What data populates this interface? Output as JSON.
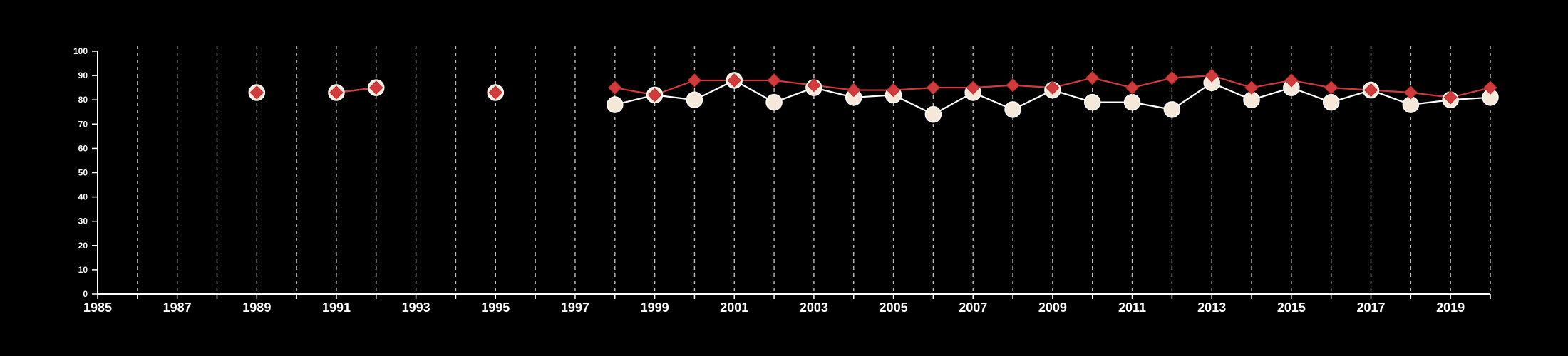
{
  "chart_data": {
    "type": "line",
    "title": "",
    "xlabel": "",
    "ylabel": "",
    "xlim": [
      1985,
      2020
    ],
    "ylim": [
      0,
      100
    ],
    "y_ticks": [
      0,
      10,
      20,
      30,
      40,
      50,
      60,
      70,
      80,
      90,
      100
    ],
    "y_tick_labels": [
      "0",
      "10",
      "20",
      "30",
      "40",
      "50",
      "60",
      "70",
      "80",
      "90",
      "100"
    ],
    "x_ticks": [
      1985,
      1987,
      1989,
      1991,
      1993,
      1995,
      1997,
      1999,
      2001,
      2003,
      2005,
      2007,
      2009,
      2011,
      2013,
      2015,
      2017,
      2019
    ],
    "x_tick_labels": [
      "1985",
      "1987",
      "1989",
      "1991",
      "1993",
      "1995",
      "1997",
      "1999",
      "2001",
      "2003",
      "2005",
      "2007",
      "2009",
      "2011",
      "2013",
      "2015",
      "2017",
      "2019"
    ],
    "vertical_grid": "dashed, every year",
    "background": "#000000",
    "series": [
      {
        "marker": "circle",
        "color": "#ffffff",
        "marker_fill": "#f6e8d8",
        "points": [
          [
            1989,
            83
          ],
          [
            1991,
            83
          ],
          [
            1992,
            85
          ],
          [
            1995,
            83
          ],
          [
            1998,
            78
          ],
          [
            1999,
            82
          ],
          [
            2000,
            80
          ],
          [
            2001,
            88
          ],
          [
            2002,
            79
          ],
          [
            2003,
            85
          ],
          [
            2004,
            81
          ],
          [
            2005,
            82
          ],
          [
            2006,
            74
          ],
          [
            2007,
            83
          ],
          [
            2008,
            76
          ],
          [
            2009,
            84
          ],
          [
            2010,
            79
          ],
          [
            2011,
            79
          ],
          [
            2012,
            76
          ],
          [
            2013,
            87
          ],
          [
            2014,
            80
          ],
          [
            2015,
            85
          ],
          [
            2016,
            79
          ],
          [
            2017,
            84
          ],
          [
            2018,
            78
          ],
          [
            2019,
            80
          ],
          [
            2020,
            81
          ]
        ]
      },
      {
        "marker": "diamond",
        "color": "#d13b3b",
        "points": [
          [
            1989,
            83
          ],
          [
            1991,
            83
          ],
          [
            1992,
            85
          ],
          [
            1995,
            83
          ],
          [
            1998,
            85
          ],
          [
            1999,
            82
          ],
          [
            2000,
            88
          ],
          [
            2001,
            88
          ],
          [
            2002,
            88
          ],
          [
            2003,
            86
          ],
          [
            2004,
            84
          ],
          [
            2005,
            84
          ],
          [
            2006,
            85
          ],
          [
            2007,
            85
          ],
          [
            2008,
            86
          ],
          [
            2009,
            85
          ],
          [
            2010,
            89
          ],
          [
            2011,
            85
          ],
          [
            2012,
            89
          ],
          [
            2013,
            90
          ],
          [
            2014,
            85
          ],
          [
            2015,
            88
          ],
          [
            2016,
            85
          ],
          [
            2017,
            84
          ],
          [
            2018,
            83
          ],
          [
            2019,
            81
          ],
          [
            2020,
            85
          ]
        ]
      }
    ]
  }
}
